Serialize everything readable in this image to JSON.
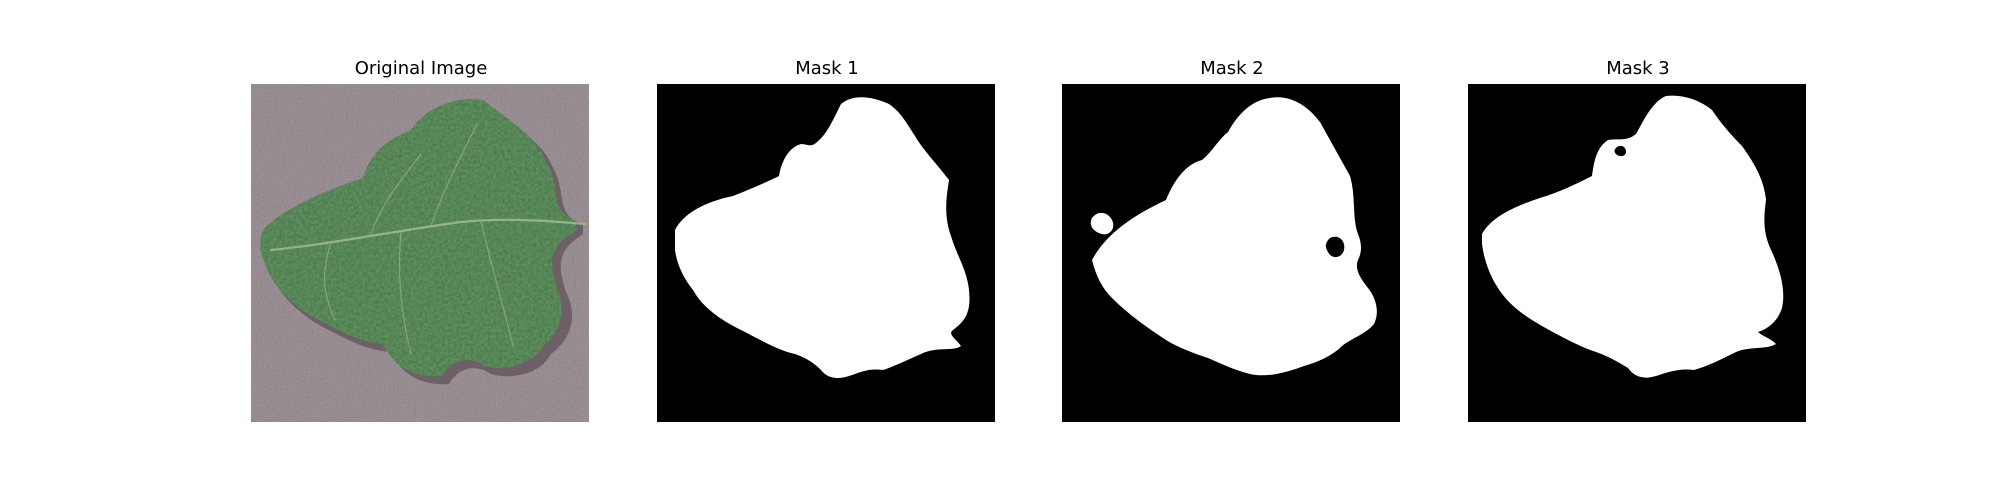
{
  "figure": {
    "panels": [
      {
        "title": "Original Image",
        "kind": "photo-leaf"
      },
      {
        "title": "Mask 1",
        "kind": "binary-mask"
      },
      {
        "title": "Mask 2",
        "kind": "binary-mask"
      },
      {
        "title": "Mask 3",
        "kind": "binary-mask"
      }
    ],
    "colors": {
      "background": "#ffffff",
      "mask_background": "#000000",
      "mask_foreground": "#ffffff",
      "photo_background": "#8d7f86",
      "leaf_dark": "#2f5a31",
      "leaf_mid": "#43733f",
      "leaf_light": "#5e8c55",
      "leaf_vein": "#9fbf8a",
      "shadow": "#5b4f56"
    }
  }
}
